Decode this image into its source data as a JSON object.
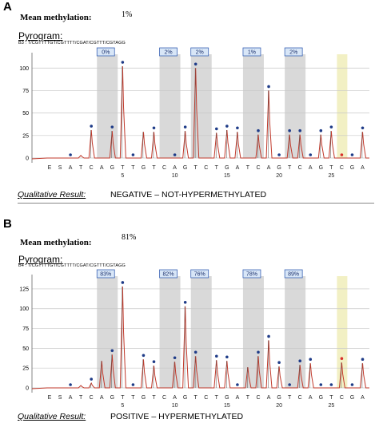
{
  "panels": [
    {
      "letter": "A",
      "mean_label": "Mean methylation:",
      "mean_value": "1%",
      "pyrogram_label": "Pyrogram:",
      "sequence": "B3 : T/CGTTTTGT/CGTTTT/CGAT/CGTTT/CGTAGG",
      "cpg_badges": [
        "0%",
        "2%",
        "2%",
        "1%",
        "2%"
      ],
      "qual_label": "Qualitative Result:",
      "qual_value": "NEGATIVE – NOT-HYPERMETHYLATED",
      "y_ticks": [
        "0",
        "25",
        "50",
        "75",
        "100"
      ],
      "dispensation": [
        "E",
        "S",
        "A",
        "T",
        "C",
        "A",
        "G",
        "T",
        "T",
        "G",
        "T",
        "C",
        "A",
        "G",
        "T",
        "C",
        "T",
        "G",
        "A",
        "T",
        "C",
        "A",
        "G",
        "T",
        "C",
        "A",
        "G",
        "T",
        "C",
        "G",
        "A"
      ],
      "x_numbers": [
        "5",
        "10",
        "15",
        "20",
        "25"
      ]
    },
    {
      "letter": "B",
      "mean_label": "Mean methylation:",
      "mean_value": "81%",
      "pyrogram_label": "Pyrogram:",
      "sequence": "B4 : T/CGTTTTGT/CGTTTT/CGAT/CGTTT/CGTAGG",
      "cpg_badges": [
        "83%",
        "82%",
        "76%",
        "78%",
        "89%"
      ],
      "qual_label": "Qualitative Result:",
      "qual_value": "POSITIVE – HYPERMETHYLATED",
      "y_ticks": [
        "0",
        "25",
        "50",
        "75",
        "100",
        "125"
      ],
      "dispensation": [
        "E",
        "S",
        "A",
        "T",
        "C",
        "A",
        "G",
        "T",
        "T",
        "G",
        "T",
        "C",
        "A",
        "G",
        "T",
        "C",
        "T",
        "G",
        "A",
        "T",
        "C",
        "A",
        "G",
        "T",
        "C",
        "A",
        "G",
        "T",
        "C",
        "G",
        "A"
      ],
      "x_numbers": [
        "5",
        "10",
        "15",
        "20",
        "25"
      ]
    }
  ],
  "colors": {
    "peak": "#c0392b",
    "grey_band": "#d9d9d9",
    "yellow_band": "#f2f0c4",
    "badge_fill": "#d8e6f7",
    "badge_border": "#3b63b5",
    "marker": "#1f3c88",
    "marker_red": "#d9302b"
  }
}
